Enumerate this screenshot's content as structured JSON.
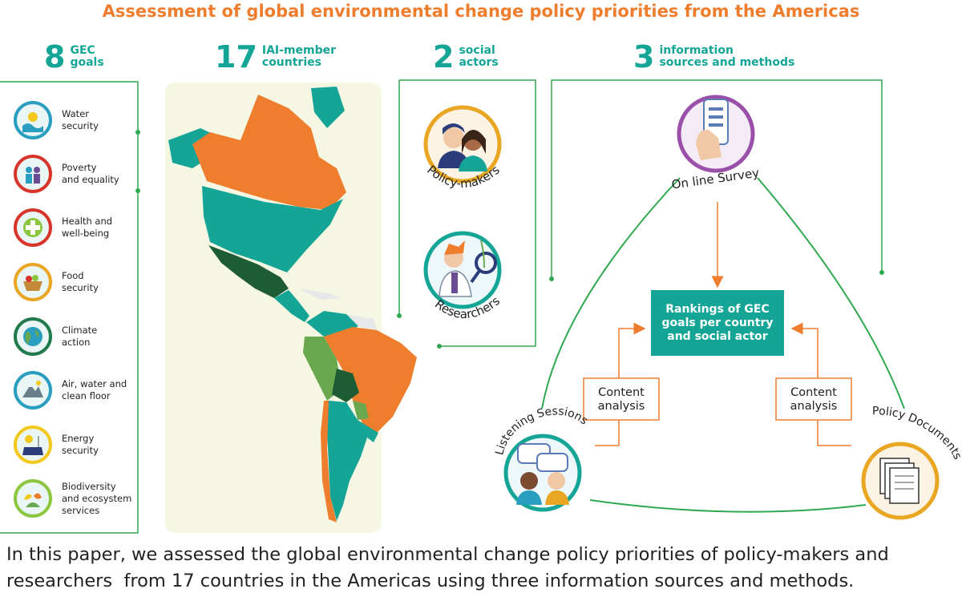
{
  "title": "Assessment of global environmental change policy priorities from the Americas",
  "stats": {
    "goals": {
      "number": "8",
      "label_line1": "GEC",
      "label_line2": "goals"
    },
    "countries": {
      "number": "17",
      "label_line1": "IAI-member",
      "label_line2": "countries"
    },
    "actors": {
      "number": "2",
      "label_line1": "social",
      "label_line2": "actors"
    },
    "sources": {
      "number": "3",
      "label_line1": "information",
      "label_line2": "sources and methods"
    }
  },
  "goals": [
    {
      "line1": "Water",
      "line2": "security",
      "line3": "",
      "icon": "water-icon",
      "color": "#2a9ec0"
    },
    {
      "line1": "Poverty",
      "line2": "and equality",
      "line3": "",
      "icon": "poverty-icon",
      "color": "#d8352a"
    },
    {
      "line1": "Health and",
      "line2": "well-being",
      "line3": "",
      "icon": "health-icon",
      "color": "#d8352a"
    },
    {
      "line1": "Food",
      "line2": "security",
      "line3": "",
      "icon": "food-icon",
      "color": "#e9a623"
    },
    {
      "line1": "Climate",
      "line2": "action",
      "line3": "",
      "icon": "climate-icon",
      "color": "#1f7a4d"
    },
    {
      "line1": "Air, water and",
      "line2": "clean floor",
      "line3": "",
      "icon": "air-icon",
      "color": "#2a9ec0"
    },
    {
      "line1": "Energy",
      "line2": "security",
      "line3": "",
      "icon": "energy-icon",
      "color": "#f2c81c"
    },
    {
      "line1": "Biodiversity",
      "line2": "and ecosystem",
      "line3": "services",
      "icon": "biodiversity-icon",
      "color": "#8cc63f"
    }
  ],
  "actors": {
    "policy_makers": "Policy-makers",
    "researchers": "Researchers"
  },
  "methods": {
    "survey": "On line Survey",
    "listening": "Listening Sessions",
    "documents": "Policy Documents"
  },
  "ranking": {
    "line1": "Rankings of GEC",
    "line2": "goals per country",
    "line3": "and social actor"
  },
  "content_analysis": {
    "line1": "Content",
    "line2": "analysis"
  },
  "caption": {
    "line1": "In this paper, we assessed the global environmental change policy priorities of policy-makers and",
    "line2": "researchers  from 17 countries in the Americas using three information sources and methods."
  },
  "colors": {
    "orange": "#ee7d2e",
    "teal": "#14a596",
    "green": "#2fa84f",
    "dark_green": "#1d5c35",
    "mid_green": "#6aa84f",
    "map_bg": "#f6f7e3"
  }
}
